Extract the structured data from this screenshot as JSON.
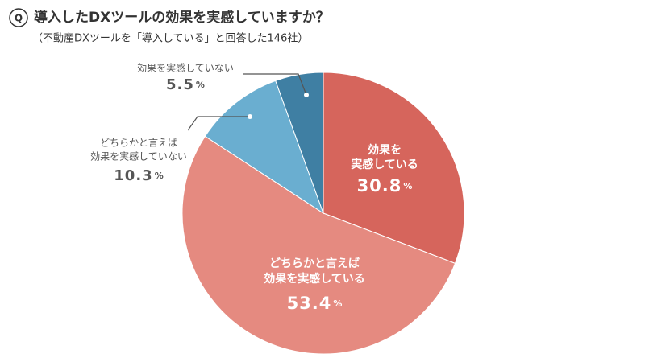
{
  "badge": "Q",
  "chart_data": {
    "type": "pie",
    "title": "導入したDXツールの効果を実感していますか？",
    "subtitle": "（不動産DXツールを「導入している」と回答した146社）",
    "categories": [
      [
        "効果を",
        "実感している"
      ],
      [
        "どちらかと言えば",
        "効果を実感している"
      ],
      [
        "どちらかと言えば",
        "効果を実感していない"
      ],
      [
        "効果を実感していない"
      ]
    ],
    "values": [
      30.8,
      53.4,
      10.3,
      5.5
    ],
    "value_unit": "%",
    "colors": [
      "#d6655c",
      "#e58a80",
      "#6aaed0",
      "#3f7fa3"
    ]
  }
}
